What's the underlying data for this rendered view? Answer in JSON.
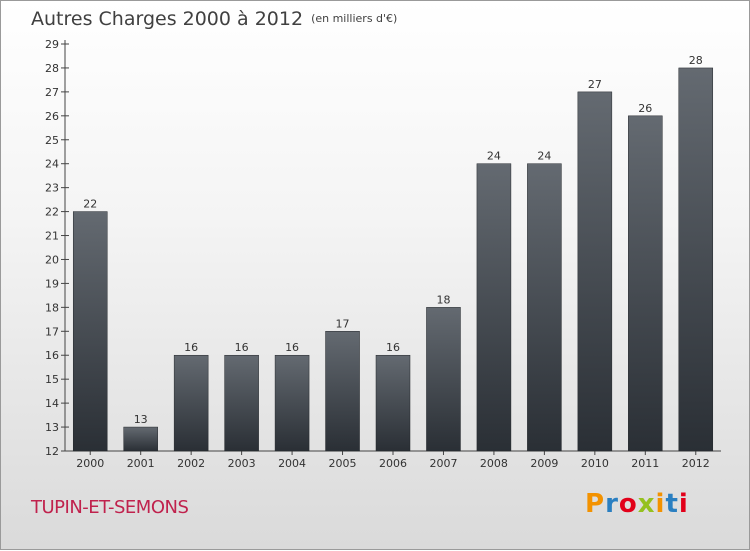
{
  "header": {
    "title": "Autres Charges 2000 à 2012",
    "subtitle": "(en milliers d'€)"
  },
  "footer": {
    "place": "TUPIN-ET-SEMONS",
    "logo": "Proxiti",
    "logo_colors": [
      "#f39200",
      "#2a7fc1",
      "#e2001a",
      "#95c11f",
      "#f39200",
      "#2a7fc1",
      "#e2001a"
    ]
  },
  "chart_data": {
    "type": "bar",
    "title": "Autres Charges 2000 à 2012",
    "subtitle": "(en milliers d'€)",
    "categories": [
      "2000",
      "2001",
      "2002",
      "2003",
      "2004",
      "2005",
      "2006",
      "2007",
      "2008",
      "2009",
      "2010",
      "2011",
      "2012"
    ],
    "values": [
      22,
      13,
      16,
      16,
      16,
      17,
      16,
      18,
      24,
      24,
      27,
      26,
      28
    ],
    "ylim": [
      12,
      29
    ],
    "yticks": [
      12,
      13,
      14,
      15,
      16,
      17,
      18,
      19,
      20,
      21,
      22,
      23,
      24,
      25,
      26,
      27,
      28,
      29
    ],
    "grid": false,
    "legend": "none",
    "bar_color_top": "#646a71",
    "bar_color_bottom": "#2a2f35"
  }
}
